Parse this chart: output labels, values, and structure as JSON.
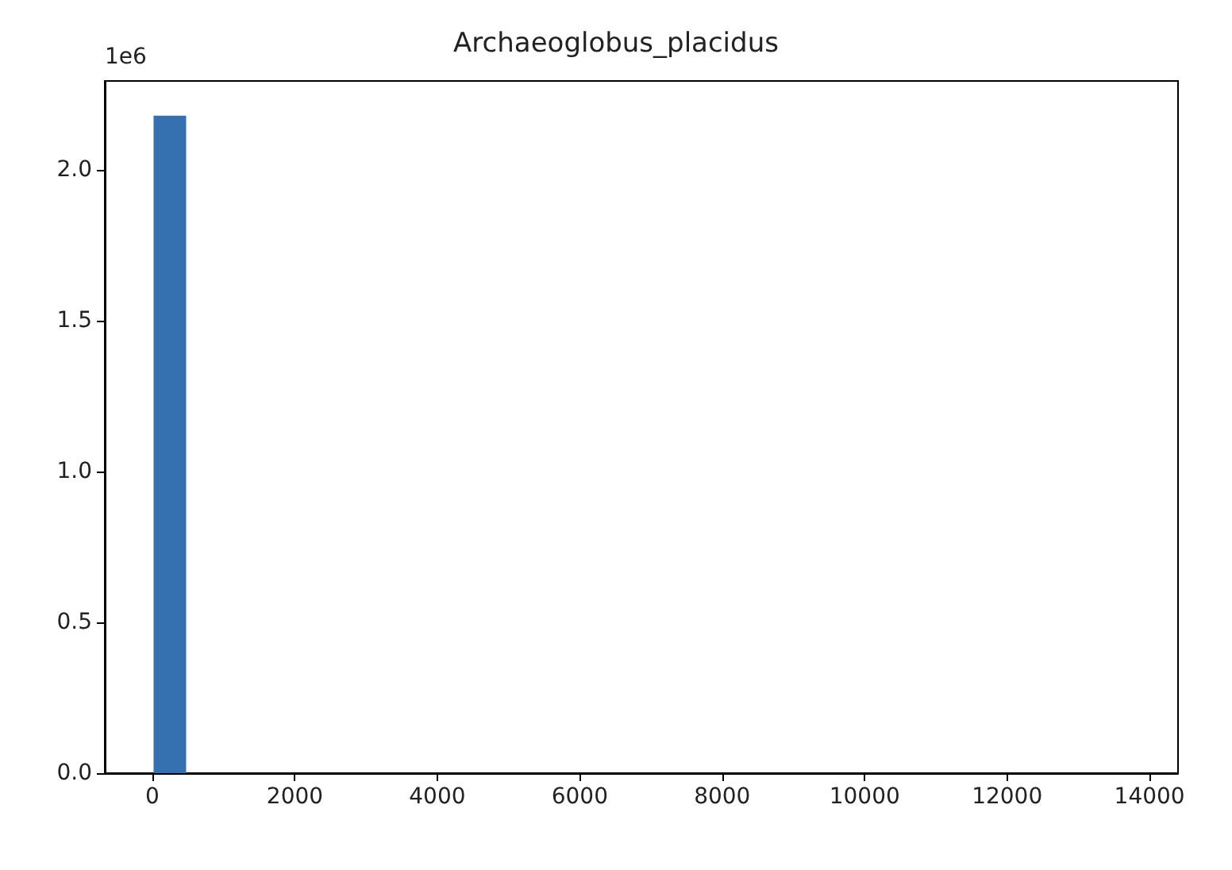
{
  "chart_data": {
    "type": "histogram",
    "title": "Archaeoglobus_placidus",
    "bins": [
      16,
      473,
      929,
      1386,
      1842,
      2299,
      2756,
      3212,
      3669,
      4126,
      4582,
      5039,
      5495,
      5952,
      6409,
      6865,
      7322,
      7779,
      8235,
      8692,
      9149,
      9605,
      10062,
      10518,
      10975,
      11432,
      11888,
      12345,
      12802,
      13258,
      13715
    ],
    "values": [
      2.18,
      0,
      0,
      0,
      0,
      0,
      0,
      0,
      0,
      0,
      0,
      0,
      0,
      0,
      0,
      0,
      0,
      0,
      0,
      0,
      0,
      0,
      0,
      0,
      0,
      0,
      0,
      0,
      0,
      0
    ],
    "color": "#3571b0",
    "xlim": [
      -669,
      14400
    ],
    "xticks": [
      0,
      2000,
      4000,
      6000,
      8000,
      10000,
      12000,
      14000
    ],
    "ylim": [
      0,
      2.295
    ],
    "yticks": [
      {
        "value": 0,
        "label": "0.0"
      },
      {
        "value": 0.5,
        "label": "0.5"
      },
      {
        "value": 1,
        "label": "1.0"
      },
      {
        "value": 1.5,
        "label": "1.5"
      },
      {
        "value": 2,
        "label": "2.0"
      }
    ],
    "annotations": [
      "1e6"
    ]
  }
}
